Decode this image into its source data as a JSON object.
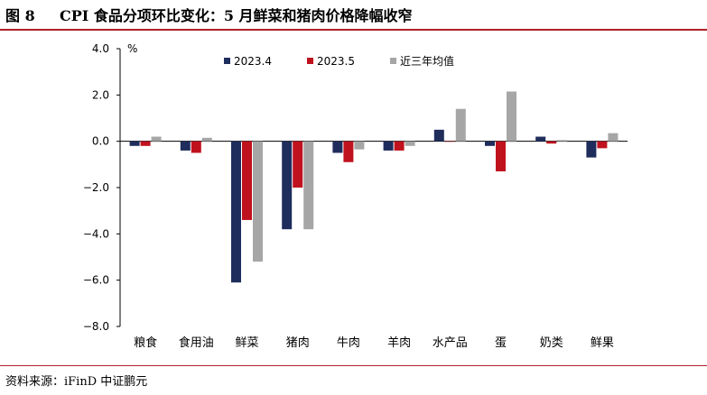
{
  "header": {
    "figure_label": "图 8",
    "title": "CPI 食品分项环比变化：5 月鲜菜和猪肉价格降幅收窄"
  },
  "footer": {
    "source": "资料来源：iFinD   中证鹏元"
  },
  "colors": {
    "rule": "#b0202a",
    "series": [
      "#1f2d5c",
      "#c0121e",
      "#a6a6a6"
    ]
  },
  "chart_data": {
    "type": "bar",
    "unit_label": "%",
    "categories": [
      "粮食",
      "食用油",
      "鲜菜",
      "猪肉",
      "牛肉",
      "羊肉",
      "水产品",
      "蛋",
      "奶类",
      "鲜果"
    ],
    "series": [
      {
        "name": "2023.4",
        "values": [
          -0.2,
          -0.4,
          -6.1,
          -3.8,
          -0.5,
          -0.4,
          0.5,
          -0.2,
          0.2,
          -0.7
        ]
      },
      {
        "name": "2023.5",
        "values": [
          -0.2,
          -0.5,
          -3.4,
          -2.0,
          -0.9,
          -0.4,
          0.0,
          -1.3,
          -0.1,
          -0.3
        ]
      },
      {
        "name": "近三年均值",
        "values": [
          0.2,
          0.15,
          -5.2,
          -3.8,
          -0.35,
          -0.2,
          1.4,
          2.15,
          0.05,
          0.35
        ]
      }
    ],
    "ylim": [
      -8.0,
      4.0
    ],
    "yticks": [
      "4.0",
      "2.0",
      "0.0",
      "−2.0",
      "−4.0",
      "−6.0",
      "−8.0"
    ],
    "ytick_values": [
      4,
      2,
      0,
      -2,
      -4,
      -6,
      -8
    ],
    "legend_position": "top",
    "grid": false
  }
}
